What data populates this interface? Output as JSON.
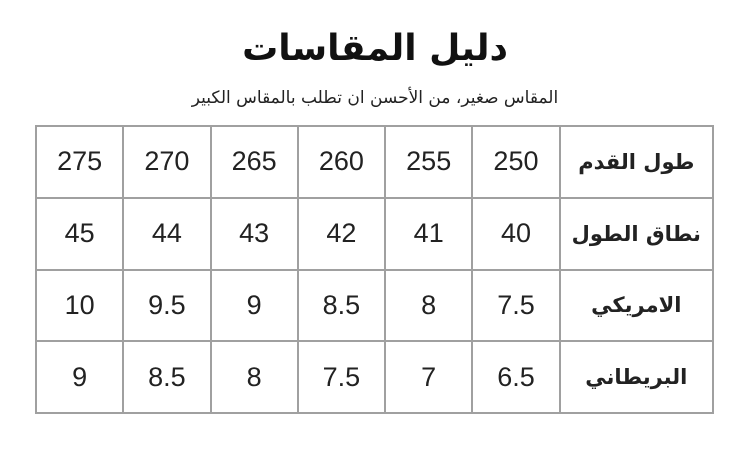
{
  "title": "دليل المقاسات",
  "subtitle": "المقاس صغير، من الأحسن ان تطلب بالمقاس الكبير",
  "rows": [
    {
      "label": "طول القدم",
      "values": [
        "250",
        "255",
        "260",
        "265",
        "270",
        "275"
      ]
    },
    {
      "label": "نطاق الطول",
      "values": [
        "40",
        "41",
        "42",
        "43",
        "44",
        "45"
      ]
    },
    {
      "label": "الامريكي",
      "values": [
        "7.5",
        "8",
        "8.5",
        "9",
        "9.5",
        "10"
      ]
    },
    {
      "label": "البريطاني",
      "values": [
        "6.5",
        "7",
        "7.5",
        "8",
        "8.5",
        "9"
      ]
    }
  ]
}
